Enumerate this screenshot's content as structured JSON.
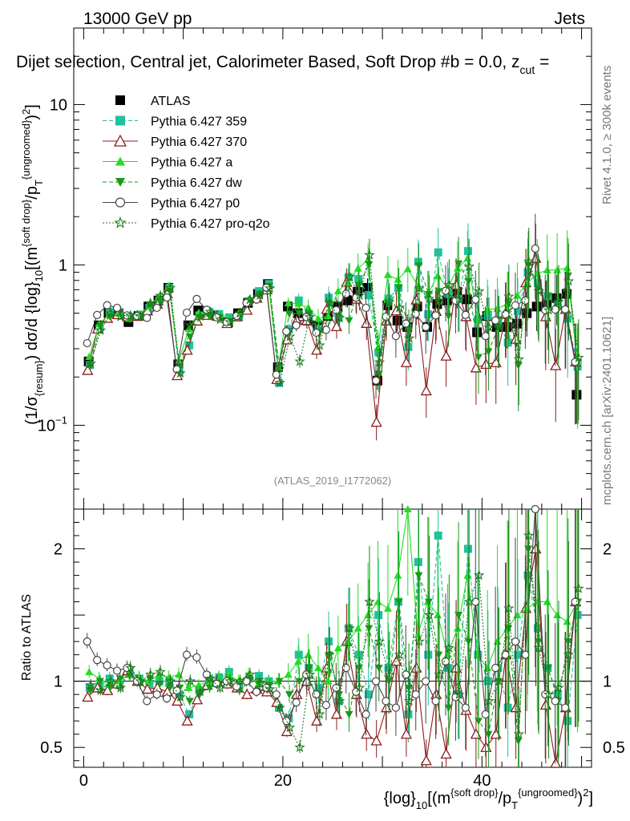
{
  "header": {
    "left": "13000 GeV pp",
    "right": "Jets",
    "title": "Dijet selection, Central jet, Calorimeter Based, Soft Drop #b = 0.0, z",
    "title_sub": "cut",
    "title_end": " ="
  },
  "side": {
    "rivet": "Rivet 4.1.0, ≥ 300k events",
    "mcplots": "mcplots.cern.ch [arXiv:2401.10621]"
  },
  "watermark": "(ATLAS_2019_I1772062)",
  "colors": {
    "ATLAS": "#000000",
    "p359": "#20c0a0",
    "p370": "#8b1a1a",
    "pa": "#22dd22",
    "pdw": "#1a9a1a",
    "pp0": "#444444",
    "pq2o": "#1f7a1f"
  },
  "chart_data": {
    "type": "line",
    "title": "Dijet selection, Central jet, Calorimeter Based, Soft Drop b = 0.0, z_cut =",
    "xlabel": "{log}_{10}[(m^{soft drop}/p_T^{ungroomed})^2]",
    "ylabel": "(1/σ_{resum}) dσ/d {log}_{10}[(m^{soft drop}/p_T^{ungroomed})^2]",
    "ratio_ylabel": "Ratio to ATLAS",
    "xlim": [
      -1,
      51
    ],
    "ylim": [
      0.03,
      30
    ],
    "ratio_ylim": [
      0.35,
      2.3
    ],
    "yscale": "log",
    "x_ticks": [
      0,
      20,
      40
    ],
    "x_tick_labels": [
      "0",
      "20",
      "40"
    ],
    "y_ticks": [
      0.1,
      1,
      10
    ],
    "y_tick_labels": [
      "10^{-1}",
      "1",
      "10"
    ],
    "ratio_ticks": [
      0.5,
      1,
      2
    ],
    "ratio_tick_labels": [
      "0.5",
      "1",
      "2"
    ],
    "legend_position": "top-left",
    "series": [
      {
        "name": "ATLAS",
        "key": "ATLAS",
        "marker": "square-filled",
        "dash": "none",
        "x": [
          0.5,
          1.5,
          2.5,
          3.5,
          4.5,
          5.5,
          6.5,
          7.5,
          8.5,
          9.5,
          10.5,
          11.5,
          12.5,
          13.5,
          14.5,
          15.5,
          16.5,
          17.5,
          18.5,
          19.5,
          20.5,
          21.5,
          22.5,
          23.5,
          24.5,
          25.5,
          26.5,
          27.5,
          28.5,
          29.5,
          30.5,
          31.5,
          32.5,
          33.5,
          34.5,
          35.5,
          36.5,
          37.5,
          38.5,
          39.5,
          40.5,
          41.5,
          42.5,
          43.5,
          44.5,
          45.5,
          46.5,
          47.5,
          48.5,
          49.5
        ],
        "y": [
          0.25,
          0.42,
          0.5,
          0.5,
          0.44,
          0.48,
          0.55,
          0.6,
          0.72,
          0.24,
          0.42,
          0.52,
          0.5,
          0.48,
          0.44,
          0.5,
          0.58,
          0.66,
          0.76,
          0.23,
          0.55,
          0.5,
          0.45,
          0.42,
          0.48,
          0.55,
          0.6,
          0.68,
          0.72,
          0.19,
          0.56,
          0.45,
          0.41,
          0.55,
          0.41,
          0.57,
          0.6,
          0.68,
          0.61,
          0.38,
          0.48,
          0.41,
          0.41,
          0.43,
          0.5,
          0.55,
          0.58,
          0.62,
          0.66,
          0.155
        ]
      },
      {
        "name": "Pythia 6.427 359",
        "key": "p359",
        "marker": "square-filled",
        "dash": "dashed",
        "ratio": [
          0.95,
          0.96,
          1.02,
          0.97,
          1.08,
          1.02,
          0.98,
          1.0,
          1.0,
          0.9,
          0.75,
          0.93,
          1.02,
          1.03,
          1.07,
          0.95,
          1.02,
          1.04,
          1.0,
          0.8,
          0.72,
          1.2,
          1.1,
          0.95,
          1.3,
          0.85,
          1.4,
          1.2,
          0.9,
          1.5,
          1.1,
          1.6,
          0.75,
          1.9,
          1.2,
          2.1,
          1.1,
          0.9,
          2.0,
          1.2,
          1.0,
          1.1,
          0.8,
          1.2,
          1.8,
          1.4,
          1.1,
          0.9,
          0.7,
          1.5
        ]
      },
      {
        "name": "Pythia 6.427 370",
        "key": "p370",
        "marker": "triangle-open",
        "dash": "none",
        "ratio": [
          0.88,
          0.95,
          0.93,
          0.98,
          1.08,
          1.0,
          0.94,
          0.95,
          0.92,
          0.85,
          0.7,
          0.86,
          0.97,
          1.0,
          0.98,
          0.95,
          0.9,
          0.94,
          0.92,
          0.84,
          0.62,
          0.9,
          1.0,
          0.7,
          1.1,
          0.75,
          1.3,
          0.9,
          0.6,
          0.55,
          0.8,
          1.15,
          0.6,
          1.1,
          0.4,
          0.9,
          0.45,
          1.1,
          0.78,
          0.6,
          0.5,
          0.6,
          1.2,
          0.8,
          1.55,
          2.0,
          0.82,
          0.38,
          0.8,
          1.6
        ]
      },
      {
        "name": "Pythia 6.427 a",
        "key": "pa",
        "marker": "triangle-filled",
        "dash": "none",
        "ratio": [
          1.07,
          1.02,
          0.98,
          1.0,
          1.05,
          1.03,
          1.0,
          1.05,
          1.03,
          1.05,
          0.95,
          0.97,
          1.0,
          1.02,
          1.05,
          1.0,
          1.05,
          0.98,
          1.0,
          1.0,
          1.05,
          1.15,
          1.2,
          1.1,
          1.0,
          1.25,
          1.3,
          1.4,
          1.5,
          1.6,
          1.55,
          1.8,
          2.3,
          1.35,
          1.6,
          1.5,
          1.2,
          1.4,
          1.8,
          1.2,
          1.1,
          1.3,
          1.4,
          1.5,
          1.55,
          1.6,
          1.6,
          1.5,
          1.45,
          1.6
        ]
      },
      {
        "name": "Pythia 6.427 dw",
        "key": "pdw",
        "marker": "triangle-down-filled",
        "dash": "dashed",
        "ratio": [
          0.93,
          1.0,
          0.95,
          1.02,
          1.04,
          0.98,
          1.02,
          0.98,
          0.95,
          0.95,
          0.85,
          0.9,
          0.95,
          0.98,
          1.0,
          0.93,
          1.0,
          1.0,
          0.97,
          1.0,
          0.9,
          1.0,
          1.1,
          0.9,
          1.2,
          0.9,
          0.75,
          1.1,
          1.4,
          1.1,
          1.0,
          1.6,
          0.95,
          1.8,
          1.6,
          1.2,
          0.8,
          1.5,
          1.3,
          0.7,
          0.6,
          1.0,
          1.4,
          0.55,
          2.0,
          1.3,
          1.1,
          0.85,
          1.3,
          1.6
        ]
      },
      {
        "name": "Pythia 6.427 p0",
        "key": "pp0",
        "marker": "circle-open",
        "dash": "none",
        "ratio": [
          1.3,
          1.16,
          1.12,
          1.08,
          1.1,
          1.0,
          0.85,
          0.9,
          0.87,
          0.93,
          1.2,
          1.18,
          1.05,
          0.98,
          1.0,
          0.96,
          1.0,
          0.92,
          0.95,
          0.9,
          0.7,
          0.84,
          1.05,
          0.9,
          0.82,
          0.95,
          1.1,
          0.92,
          0.75,
          1.0,
          0.85,
          0.8,
          1.05,
          0.9,
          1.0,
          0.85,
          1.15,
          0.88,
          0.8,
          1.6,
          0.75,
          1.1,
          1.2,
          1.3,
          1.2,
          2.3,
          0.9,
          0.85,
          0.8,
          1.6
        ]
      },
      {
        "name": "Pythia 6.427 pro-q2o",
        "key": "pq2o",
        "marker": "star",
        "dash": "dotted",
        "ratio": [
          0.97,
          0.93,
          1.0,
          0.95,
          1.1,
          1.0,
          1.05,
          1.07,
          1.0,
          0.88,
          1.0,
          0.92,
          1.02,
          0.95,
          1.0,
          1.0,
          1.05,
          0.98,
          0.94,
          0.8,
          0.65,
          0.5,
          1.05,
          0.75,
          1.2,
          0.85,
          1.4,
          0.95,
          1.6,
          1.3,
          1.05,
          1.2,
          0.85,
          1.3,
          1.5,
          1.05,
          1.25,
          0.9,
          1.6,
          1.8,
          0.85,
          1.0,
          1.55,
          0.6,
          2.1,
          1.25,
          0.9,
          0.95,
          1.2,
          1.7
        ]
      }
    ]
  }
}
